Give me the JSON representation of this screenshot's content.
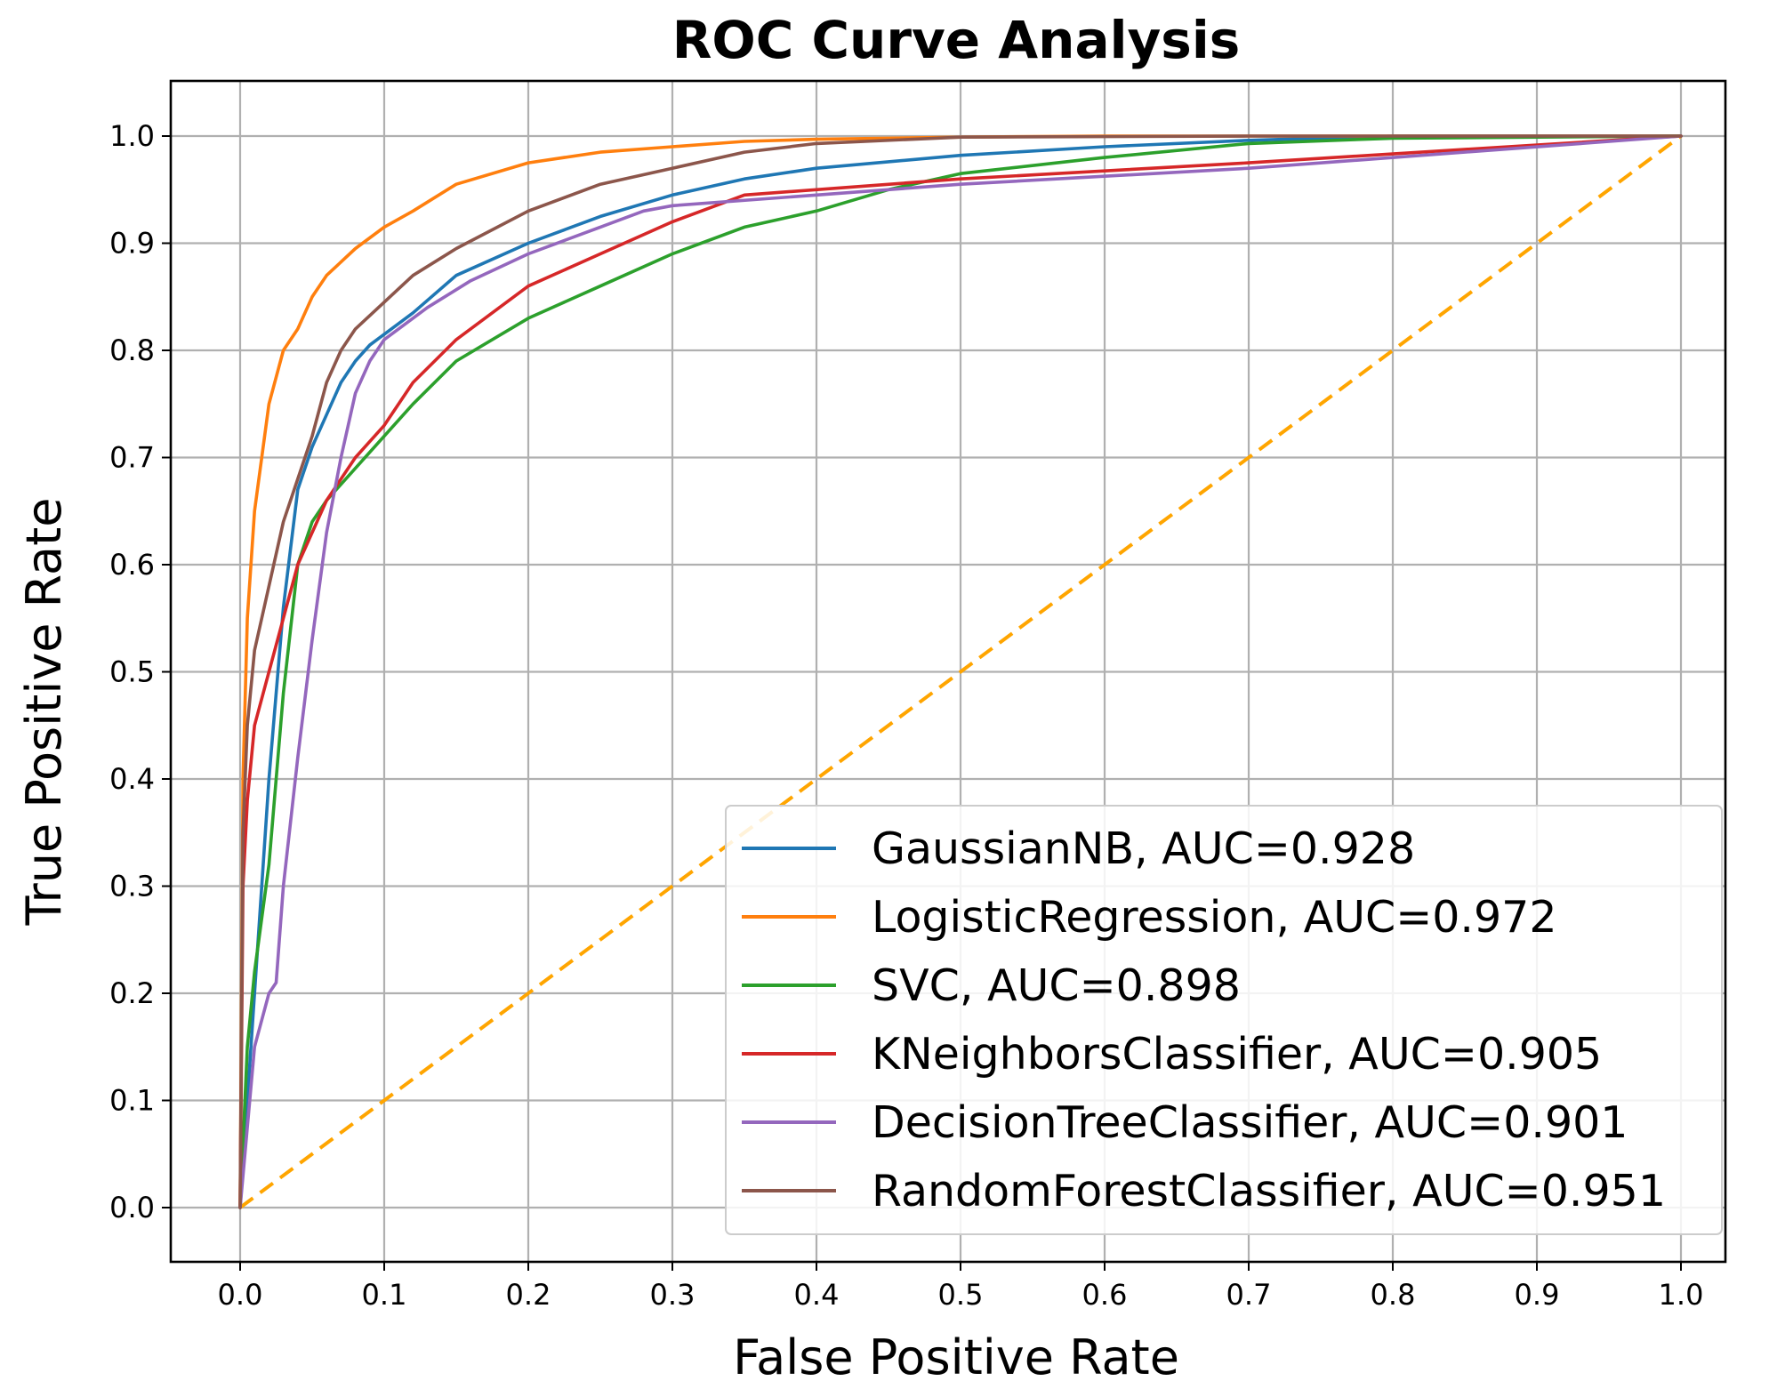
{
  "chart_data": {
    "type": "line",
    "title": "ROC Curve Analysis",
    "xlabel": "False Positive Rate",
    "ylabel": "True Positive Rate",
    "xlim": [
      -0.05,
      1.05
    ],
    "ylim": [
      -0.05,
      1.05
    ],
    "xticks": [
      0.0,
      0.1,
      0.2,
      0.3,
      0.4,
      0.5,
      0.6,
      0.7,
      0.8,
      0.9,
      1.0
    ],
    "yticks": [
      0.0,
      0.1,
      0.2,
      0.3,
      0.4,
      0.5,
      0.6,
      0.7,
      0.8,
      0.9,
      1.0
    ],
    "xtick_labels": [
      "0.0",
      "0.1",
      "0.2",
      "0.3",
      "0.4",
      "0.5",
      "0.6",
      "0.7",
      "0.8",
      "0.9",
      "1.0"
    ],
    "ytick_labels": [
      "0.0",
      "0.1",
      "0.2",
      "0.3",
      "0.4",
      "0.5",
      "0.6",
      "0.7",
      "0.8",
      "0.9",
      "1.0"
    ],
    "grid": true,
    "legend_position": "lower-right",
    "series": [
      {
        "name": "GaussianNB",
        "auc": "0.928",
        "label": "GaussianNB, AUC=0.928",
        "color": "#1f77b4",
        "x": [
          0,
          0.005,
          0.01,
          0.02,
          0.03,
          0.04,
          0.05,
          0.06,
          0.07,
          0.08,
          0.09,
          0.1,
          0.12,
          0.15,
          0.2,
          0.25,
          0.3,
          0.35,
          0.4,
          0.5,
          0.6,
          0.7,
          0.8,
          1.0
        ],
        "y": [
          0,
          0.1,
          0.2,
          0.4,
          0.56,
          0.67,
          0.71,
          0.74,
          0.77,
          0.79,
          0.805,
          0.815,
          0.835,
          0.87,
          0.9,
          0.925,
          0.945,
          0.96,
          0.97,
          0.982,
          0.99,
          0.996,
          1.0,
          1.0
        ]
      },
      {
        "name": "LogisticRegression",
        "auc": "0.972",
        "label": "LogisticRegression, AUC=0.972",
        "color": "#ff7f0e",
        "x": [
          0,
          0.002,
          0.005,
          0.01,
          0.015,
          0.02,
          0.03,
          0.04,
          0.05,
          0.06,
          0.08,
          0.1,
          0.12,
          0.15,
          0.2,
          0.25,
          0.3,
          0.35,
          0.4,
          0.5,
          0.6,
          1.0
        ],
        "y": [
          0,
          0.4,
          0.55,
          0.65,
          0.7,
          0.75,
          0.8,
          0.82,
          0.85,
          0.87,
          0.895,
          0.915,
          0.93,
          0.955,
          0.975,
          0.985,
          0.99,
          0.995,
          0.997,
          0.999,
          1.0,
          1.0
        ]
      },
      {
        "name": "SVC",
        "auc": "0.898",
        "label": "SVC, AUC=0.898",
        "color": "#2ca02c",
        "x": [
          0,
          0.005,
          0.01,
          0.02,
          0.03,
          0.04,
          0.05,
          0.06,
          0.08,
          0.1,
          0.12,
          0.15,
          0.2,
          0.25,
          0.3,
          0.35,
          0.4,
          0.45,
          0.5,
          0.6,
          0.7,
          0.8,
          1.0
        ],
        "y": [
          0,
          0.15,
          0.22,
          0.32,
          0.48,
          0.6,
          0.64,
          0.66,
          0.69,
          0.72,
          0.75,
          0.79,
          0.83,
          0.86,
          0.89,
          0.915,
          0.93,
          0.95,
          0.965,
          0.98,
          0.993,
          0.998,
          1.0
        ]
      },
      {
        "name": "KNeighborsClassifier",
        "auc": "0.905",
        "label": "KNeighborsClassifier, AUC=0.905",
        "color": "#d62728",
        "x": [
          0,
          0.002,
          0.005,
          0.01,
          0.02,
          0.03,
          0.04,
          0.06,
          0.08,
          0.1,
          0.12,
          0.15,
          0.2,
          0.25,
          0.3,
          0.35,
          0.5,
          0.7,
          1.0
        ],
        "y": [
          0,
          0.3,
          0.38,
          0.45,
          0.5,
          0.55,
          0.6,
          0.66,
          0.7,
          0.73,
          0.77,
          0.81,
          0.86,
          0.89,
          0.92,
          0.945,
          0.96,
          0.975,
          1.0
        ]
      },
      {
        "name": "DecisionTreeClassifier",
        "auc": "0.901",
        "label": "DecisionTreeClassifier, AUC=0.901",
        "color": "#9467bd",
        "x": [
          0,
          0.01,
          0.02,
          0.025,
          0.03,
          0.04,
          0.05,
          0.06,
          0.07,
          0.08,
          0.09,
          0.1,
          0.13,
          0.16,
          0.2,
          0.25,
          0.28,
          0.3,
          0.4,
          0.5,
          0.7,
          1.0
        ],
        "y": [
          0,
          0.15,
          0.2,
          0.21,
          0.3,
          0.42,
          0.53,
          0.63,
          0.7,
          0.76,
          0.79,
          0.81,
          0.84,
          0.865,
          0.89,
          0.915,
          0.93,
          0.935,
          0.945,
          0.955,
          0.97,
          1.0
        ]
      },
      {
        "name": "RandomForestClassifier",
        "auc": "0.951",
        "label": "RandomForestClassifier, AUC=0.951",
        "color": "#8c564b",
        "x": [
          0,
          0.002,
          0.005,
          0.01,
          0.02,
          0.03,
          0.04,
          0.05,
          0.06,
          0.07,
          0.08,
          0.1,
          0.12,
          0.15,
          0.2,
          0.25,
          0.3,
          0.35,
          0.4,
          0.5,
          0.7,
          1.0
        ],
        "y": [
          0,
          0.35,
          0.45,
          0.52,
          0.58,
          0.64,
          0.68,
          0.72,
          0.77,
          0.8,
          0.82,
          0.845,
          0.87,
          0.895,
          0.93,
          0.955,
          0.97,
          0.985,
          0.993,
          0.999,
          1.0,
          1.0
        ]
      }
    ],
    "reference_line": {
      "x": [
        0,
        1
      ],
      "y": [
        0,
        1
      ],
      "color": "#ffa500",
      "style": "dashed"
    }
  }
}
